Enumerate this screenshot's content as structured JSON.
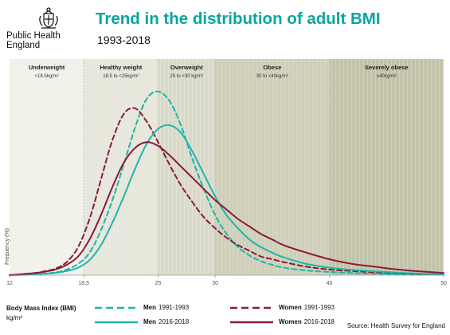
{
  "header": {
    "org_line1": "Public Health",
    "org_line2": "England",
    "crest_icon": "royal-crest-icon"
  },
  "chart_data": {
    "type": "line",
    "title": "Trend in the distribution of adult BMI",
    "subtitle": "1993-2018",
    "xlabel": "Body Mass Index (BMI)",
    "xlabel_unit": "kg/m²",
    "ylabel": "Frequency (%)",
    "xlim": [
      12,
      50
    ],
    "ylim": [
      0,
      1
    ],
    "xticks": [
      {
        "value": 12,
        "label": "12"
      },
      {
        "value": 18.5,
        "label": "18.5"
      },
      {
        "value": 25,
        "label": "25"
      },
      {
        "value": 30,
        "label": "30"
      },
      {
        "value": 40,
        "label": "40"
      },
      {
        "value": 50,
        "label": "50"
      }
    ],
    "bands": [
      {
        "name": "Underweight",
        "range_label": "<18.5kg/m²",
        "from": 12,
        "to": 18.5,
        "color": "#f1f1ea"
      },
      {
        "name": "Healthy weight",
        "range_label": "18.5 to <25kg/m²",
        "from": 18.5,
        "to": 25,
        "color": "#e6e6da"
      },
      {
        "name": "Overweight",
        "range_label": "25 to <30 kg/m²",
        "from": 25,
        "to": 30,
        "color": "#dadac9"
      },
      {
        "name": "Obese",
        "range_label": "30 to <40kg/m²",
        "from": 30,
        "to": 40,
        "color": "#cfcfb9"
      },
      {
        "name": "Severely obese",
        "range_label": "≥40kg/m²",
        "from": 40,
        "to": 50,
        "color": "#c3c3aa"
      }
    ],
    "series": [
      {
        "name": "Men 1991-1993",
        "color": "#1ab8aa",
        "dashed": true,
        "x": [
          12,
          14,
          16,
          17,
          18,
          19,
          20,
          21,
          22,
          23,
          24,
          25,
          26,
          27,
          28,
          29,
          30,
          31,
          32,
          33,
          34,
          35,
          36,
          38,
          40,
          42,
          44,
          46,
          48,
          50
        ],
        "y": [
          0,
          0.005,
          0.015,
          0.03,
          0.06,
          0.12,
          0.24,
          0.4,
          0.59,
          0.79,
          0.94,
          0.98,
          0.93,
          0.8,
          0.62,
          0.46,
          0.32,
          0.22,
          0.15,
          0.105,
          0.075,
          0.055,
          0.04,
          0.025,
          0.017,
          0.012,
          0.008,
          0.005,
          0.003,
          0.002
        ]
      },
      {
        "name": "Women 1991-1993",
        "color": "#8c1a3a",
        "dashed": true,
        "x": [
          12,
          14,
          15,
          16,
          17,
          18,
          19,
          20,
          21,
          22,
          23,
          24,
          25,
          26,
          27,
          28,
          29,
          30,
          31,
          32,
          33,
          34,
          35,
          36,
          38,
          40,
          42,
          44,
          46,
          48,
          50
        ],
        "y": [
          0,
          0.01,
          0.02,
          0.035,
          0.07,
          0.15,
          0.3,
          0.51,
          0.72,
          0.86,
          0.89,
          0.82,
          0.71,
          0.59,
          0.48,
          0.39,
          0.31,
          0.25,
          0.2,
          0.16,
          0.13,
          0.1,
          0.085,
          0.07,
          0.045,
          0.03,
          0.022,
          0.015,
          0.01,
          0.006,
          0.004
        ]
      },
      {
        "name": "Men 2016-2018",
        "color": "#1ab8aa",
        "dashed": false,
        "x": [
          12,
          14,
          16,
          17,
          18,
          19,
          20,
          21,
          22,
          23,
          24,
          25,
          26,
          27,
          28,
          29,
          30,
          31,
          32,
          33,
          34,
          35,
          36,
          38,
          40,
          42,
          44,
          46,
          48,
          50
        ],
        "y": [
          0,
          0.004,
          0.012,
          0.022,
          0.04,
          0.08,
          0.16,
          0.28,
          0.42,
          0.57,
          0.7,
          0.78,
          0.8,
          0.76,
          0.66,
          0.54,
          0.42,
          0.32,
          0.25,
          0.19,
          0.15,
          0.12,
          0.095,
          0.06,
          0.04,
          0.028,
          0.02,
          0.013,
          0.008,
          0.005
        ]
      },
      {
        "name": "Women 2016-2018",
        "color": "#8c1a3a",
        "dashed": false,
        "x": [
          12,
          14,
          15,
          16,
          17,
          18,
          19,
          20,
          21,
          22,
          23,
          24,
          25,
          26,
          27,
          28,
          29,
          30,
          31,
          32,
          33,
          34,
          35,
          36,
          38,
          40,
          42,
          44,
          46,
          48,
          50
        ],
        "y": [
          0,
          0.01,
          0.018,
          0.03,
          0.055,
          0.1,
          0.19,
          0.32,
          0.47,
          0.6,
          0.68,
          0.71,
          0.69,
          0.64,
          0.58,
          0.52,
          0.46,
          0.4,
          0.35,
          0.3,
          0.26,
          0.22,
          0.19,
          0.16,
          0.12,
          0.085,
          0.06,
          0.045,
          0.03,
          0.02,
          0.012
        ]
      }
    ],
    "legend": {
      "position": "bottom"
    },
    "grid": false,
    "source": "Source: Health Survey for England"
  }
}
